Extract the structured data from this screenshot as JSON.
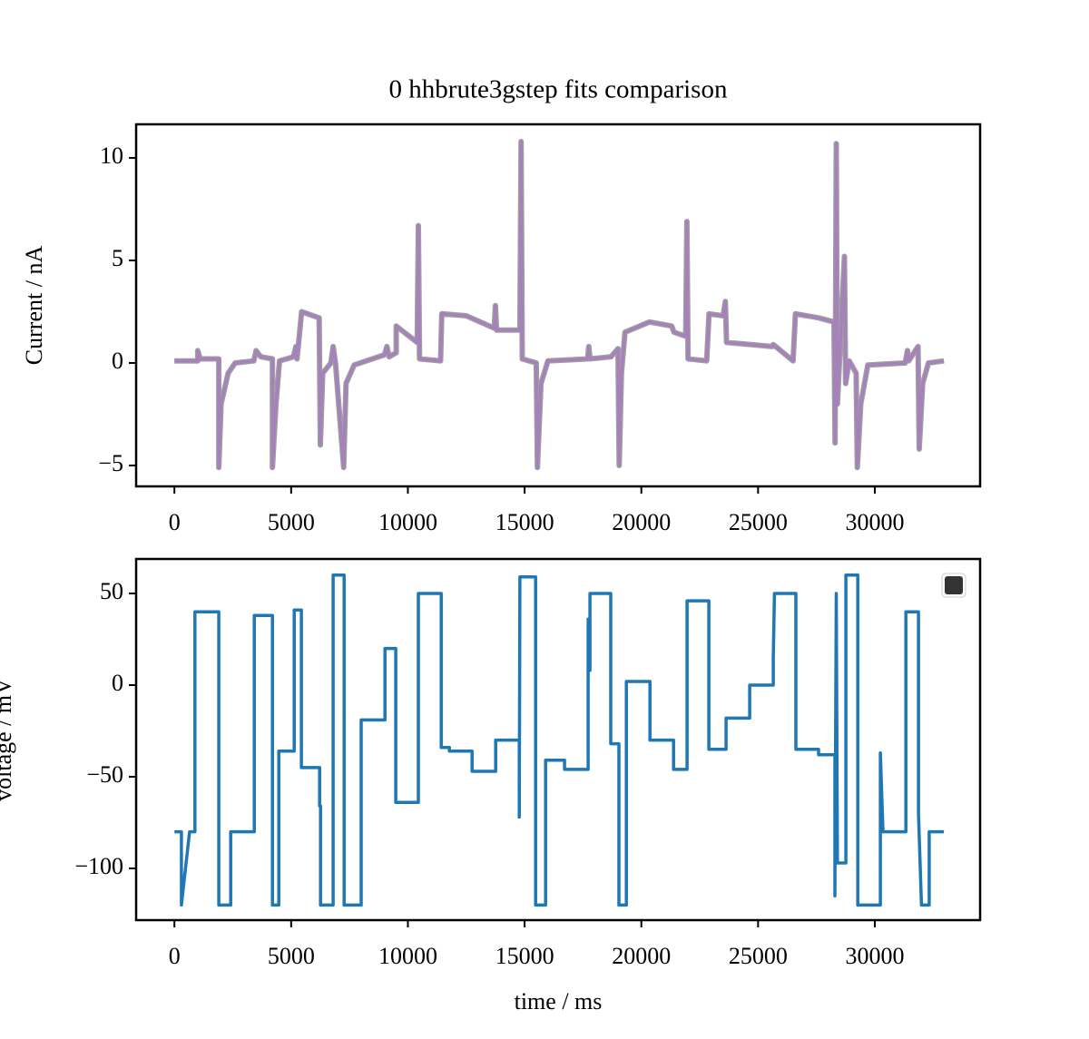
{
  "chart_data": [
    {
      "type": "line",
      "title": "0 hhbrute3gstep fits comparison",
      "ylabel": "Current / nA",
      "xlim": [
        -1640,
        34510
      ],
      "ylim": [
        -6.02,
        11.64
      ],
      "xticks": [
        0,
        5000,
        10000,
        15000,
        20000,
        25000,
        30000
      ],
      "yticks": [
        {
          "value": -5,
          "label": "−5"
        },
        0,
        5,
        10
      ],
      "x": [
        0,
        1000,
        1000,
        1100,
        1900,
        1900,
        2000,
        2300,
        2600,
        3400,
        3500,
        3700,
        4200,
        4200,
        4350,
        4500,
        5100,
        5200,
        5250,
        5450,
        6200,
        6250,
        6350,
        6700,
        6800,
        6900,
        7250,
        7350,
        7700,
        9000,
        9100,
        9200,
        9500,
        9500,
        10400,
        10450,
        10500,
        11400,
        11450,
        12500,
        13700,
        13750,
        13800,
        14800,
        14850,
        14900,
        15500,
        15550,
        15700,
        16000,
        17700,
        17750,
        17800,
        18700,
        19000,
        19050,
        19150,
        19300,
        20350,
        21300,
        21400,
        21900,
        21950,
        22000,
        22800,
        22900,
        23500,
        23600,
        23650,
        24700,
        25600,
        25650,
        26500,
        26600,
        27600,
        28250,
        28300,
        28350,
        28400,
        28700,
        28750,
        28900,
        29200,
        29250,
        29400,
        29700,
        31300,
        31400,
        31450,
        31850,
        31900,
        32050,
        32300,
        32960
      ],
      "series": [
        {
          "color": "#a0a0a0",
          "values": [
            0.1,
            0.1,
            0.6,
            0.2,
            0.2,
            -5.1,
            -2,
            -0.5,
            0,
            0.1,
            0.6,
            0.3,
            0.2,
            -5.1,
            -2,
            0.1,
            0.3,
            0.8,
            0.2,
            2.5,
            2.2,
            -4,
            -0.5,
            0,
            0.8,
            0,
            -5.1,
            -1,
            -0.1,
            0.4,
            0.8,
            0.3,
            0.5,
            1.8,
            1,
            6.7,
            0.2,
            0.1,
            2.4,
            2.3,
            1.7,
            2.8,
            1.6,
            1.6,
            10.8,
            0.2,
            0,
            -5.1,
            -1,
            0.1,
            0.2,
            0.8,
            0.2,
            0.3,
            0.7,
            -5,
            -0.5,
            1.5,
            2,
            1.8,
            1.5,
            1.3,
            6.9,
            0.2,
            0.1,
            2.4,
            2.3,
            3,
            1,
            0.9,
            0.8,
            0.9,
            0.1,
            2.4,
            2.2,
            2,
            -3.9,
            10.7,
            -2,
            5.2,
            -1,
            0.1,
            -0.5,
            -5.1,
            -2,
            -0.1,
            0,
            0.6,
            0.1,
            0.8,
            -4.2,
            -1,
            0,
            0.1
          ]
        },
        {
          "color": "#a582ba",
          "values": [
            0.1,
            0.1,
            0.6,
            0.2,
            0.2,
            -5.1,
            -2,
            -0.5,
            0,
            0.1,
            0.6,
            0.3,
            0.2,
            -5.1,
            -2,
            0.1,
            0.3,
            0.8,
            0.2,
            2.5,
            2.2,
            -4,
            -0.5,
            0,
            0.8,
            0,
            -5.1,
            -1,
            -0.1,
            0.4,
            0.8,
            0.3,
            0.5,
            1.8,
            1,
            6.7,
            0.2,
            0.1,
            2.4,
            2.3,
            1.7,
            2.8,
            1.6,
            1.6,
            10.8,
            0.2,
            0,
            -5.1,
            -1,
            0.1,
            0.2,
            0.8,
            0.2,
            0.3,
            0.7,
            -5,
            -0.5,
            1.5,
            2,
            1.8,
            1.5,
            1.3,
            6.9,
            0.2,
            0.1,
            2.4,
            2.3,
            3,
            1,
            0.9,
            0.8,
            0.9,
            0.1,
            2.4,
            2.2,
            2,
            -3.9,
            10.7,
            -2,
            5.2,
            -1,
            0.1,
            -0.5,
            -5.1,
            -2,
            -0.1,
            0,
            0.6,
            0.1,
            0.8,
            -4.2,
            -1,
            0,
            0.1
          ]
        }
      ]
    },
    {
      "type": "line",
      "ylabel": "voltage / mV",
      "xlabel": "time / ms",
      "xlim": [
        -1640,
        34510
      ],
      "ylim": [
        -128.2,
        68.8
      ],
      "xticks": [
        0,
        5000,
        10000,
        15000,
        20000,
        25000,
        30000
      ],
      "yticks": [
        {
          "value": -100,
          "label": "−100"
        },
        {
          "value": -50,
          "label": "−50"
        },
        0,
        50
      ],
      "x": [
        0,
        300,
        300,
        650,
        880,
        880,
        1900,
        1900,
        2410,
        2410,
        3420,
        3420,
        4200,
        4200,
        4470,
        4470,
        5130,
        5130,
        5440,
        5440,
        6220,
        6220,
        6260,
        6260,
        6800,
        6800,
        7270,
        7270,
        8000,
        8000,
        9020,
        9020,
        9480,
        9480,
        10450,
        10450,
        11430,
        11430,
        11780,
        11780,
        12750,
        12750,
        13760,
        13760,
        14770,
        14770,
        14800,
        15470,
        15470,
        15900,
        15900,
        16710,
        16710,
        17720,
        17720,
        17800,
        17800,
        18690,
        18690,
        19040,
        19040,
        19360,
        19360,
        20370,
        20370,
        21380,
        21380,
        21960,
        21960,
        22890,
        22890,
        23630,
        23630,
        24640,
        24640,
        25650,
        25650,
        25700,
        26620,
        26620,
        27590,
        27590,
        28290,
        28290,
        28350,
        28400,
        28760,
        28760,
        29270,
        29270,
        30240,
        30240,
        30350,
        31330,
        31330,
        31870,
        31870,
        32000,
        32330,
        32330,
        32960
      ],
      "series": [
        {
          "color": "#1f77b4",
          "values": [
            -80,
            -80,
            -120,
            -80,
            -80,
            40,
            40,
            -120,
            -120,
            -80,
            -80,
            38,
            38,
            -120,
            -120,
            -36,
            -36,
            41,
            41,
            -45,
            -45,
            -66,
            -66,
            -120,
            -120,
            60,
            60,
            -120,
            -120,
            -19,
            -19,
            20,
            20,
            -64,
            -64,
            50,
            50,
            -34,
            -34,
            -36,
            -36,
            -47,
            -47,
            -30,
            -30,
            -72,
            59,
            59,
            -120,
            -120,
            -41,
            -41,
            -46,
            -46,
            36,
            8,
            50,
            50,
            -32,
            -32,
            -120,
            -120,
            2,
            2,
            -30,
            -30,
            -46,
            -46,
            46,
            46,
            -35,
            -35,
            -18,
            -18,
            0,
            0,
            15,
            50,
            50,
            -35,
            -35,
            -38,
            -38,
            -115,
            50,
            -97,
            -97,
            60,
            60,
            -120,
            -120,
            -37,
            -80,
            -80,
            40,
            40,
            -70,
            -120,
            -120,
            -80,
            -80
          ]
        }
      ]
    }
  ]
}
